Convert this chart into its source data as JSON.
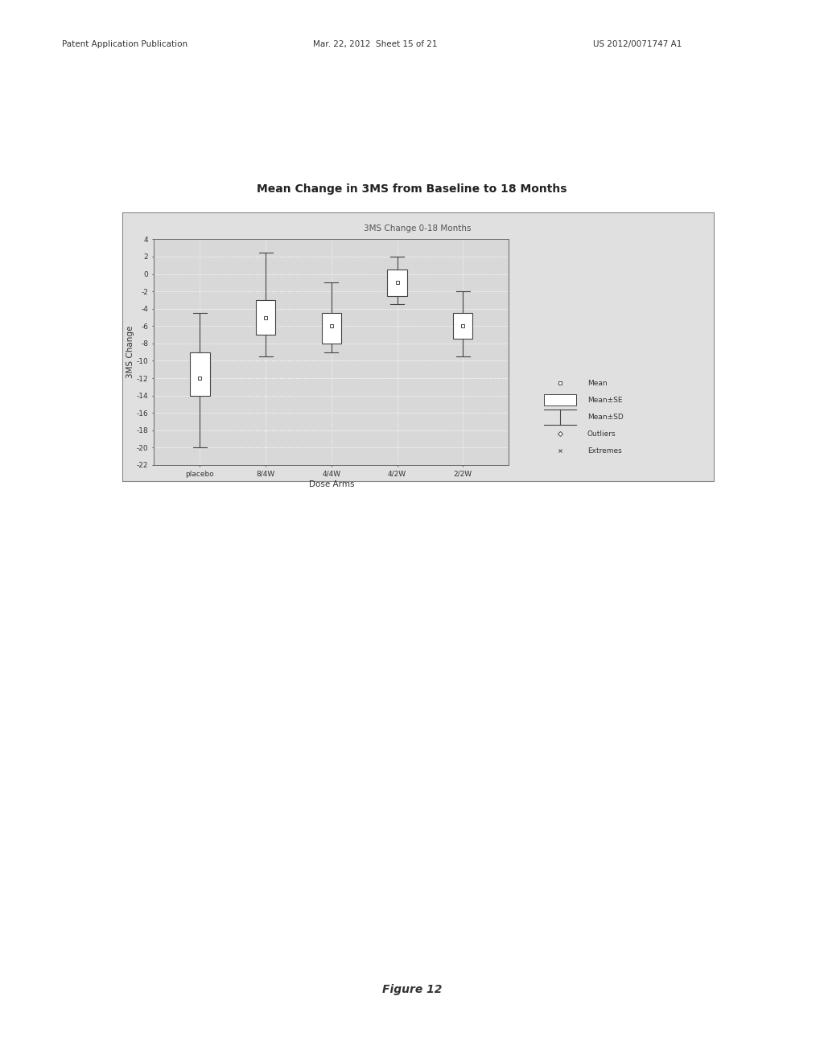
{
  "title": "Mean Change in 3MS from Baseline to 18 Months",
  "chart_subtitle": "3MS Change 0-18 Months",
  "xlabel": "Dose Arms",
  "ylabel": "3MS Change",
  "ylim": [
    -22,
    4
  ],
  "yticks": [
    4,
    2,
    0,
    -2,
    -4,
    -6,
    -8,
    -10,
    -12,
    -14,
    -16,
    -18,
    -20,
    -22
  ],
  "categories": [
    "placebo",
    "8/4W",
    "4/4W",
    "4/2W",
    "2/2W"
  ],
  "box_data": [
    {
      "mean": -12.0,
      "se_low": -14.0,
      "se_high": -9.0,
      "sd_low": -20.0,
      "sd_high": -4.5
    },
    {
      "mean": -5.0,
      "se_low": -7.0,
      "se_high": -3.0,
      "sd_low": -9.5,
      "sd_high": 2.5
    },
    {
      "mean": -6.0,
      "se_low": -8.0,
      "se_high": -4.5,
      "sd_low": -9.0,
      "sd_high": -1.0
    },
    {
      "mean": -1.0,
      "se_low": -2.5,
      "se_high": 0.5,
      "sd_low": -3.5,
      "sd_high": 2.0
    },
    {
      "mean": -6.0,
      "se_low": -7.5,
      "se_high": -4.5,
      "sd_low": -9.5,
      "sd_high": -2.0
    }
  ],
  "outer_bg_color": "#e0e0e0",
  "plot_bg_color": "#d8d8d8",
  "box_face_color": "#ffffff",
  "box_edge_color": "#444444",
  "whisker_color": "#444444",
  "mean_marker_color": "#444444",
  "grid_color": "#ffffff",
  "page_bg_color": "#ffffff",
  "title_fontsize": 10,
  "subtitle_fontsize": 7.5,
  "axis_label_fontsize": 7.5,
  "tick_fontsize": 6.5,
  "legend_fontsize": 6.5
}
